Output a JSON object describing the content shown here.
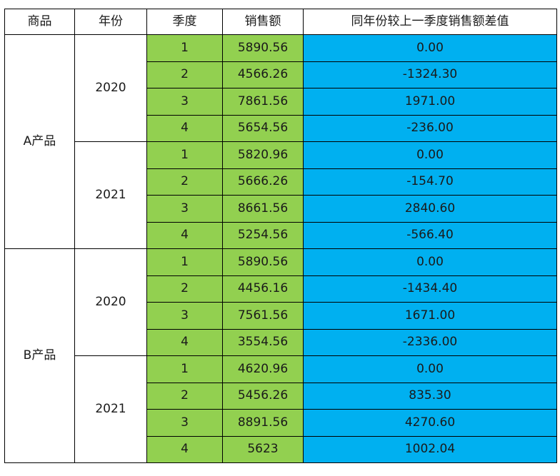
{
  "header": [
    "商品",
    "年份",
    "季度",
    "销售额",
    "同年份较上一季度销售额差值"
  ],
  "colors": {
    "quarter_bg": "#92d050",
    "sales_bg": "#92d050",
    "diff_bg": "#00b0f0",
    "border": "#000000"
  },
  "products": [
    {
      "name": "A产品",
      "years": [
        {
          "year": "2020",
          "rows": [
            {
              "quarter": "1",
              "sales": "5890.56",
              "diff": "0.00"
            },
            {
              "quarter": "2",
              "sales": "4566.26",
              "diff": "-1324.30"
            },
            {
              "quarter": "3",
              "sales": "7861.56",
              "diff": "1971.00"
            },
            {
              "quarter": "4",
              "sales": "5654.56",
              "diff": "-236.00"
            }
          ]
        },
        {
          "year": "2021",
          "rows": [
            {
              "quarter": "1",
              "sales": "5820.96",
              "diff": "0.00"
            },
            {
              "quarter": "2",
              "sales": "5666.26",
              "diff": "-154.70"
            },
            {
              "quarter": "3",
              "sales": "8661.56",
              "diff": "2840.60"
            },
            {
              "quarter": "4",
              "sales": "5254.56",
              "diff": "-566.40"
            }
          ]
        }
      ]
    },
    {
      "name": "B产品",
      "years": [
        {
          "year": "2020",
          "rows": [
            {
              "quarter": "1",
              "sales": "5890.56",
              "diff": "0.00"
            },
            {
              "quarter": "2",
              "sales": "4456.16",
              "diff": "-1434.40"
            },
            {
              "quarter": "3",
              "sales": "7561.56",
              "diff": "1671.00"
            },
            {
              "quarter": "4",
              "sales": "3554.56",
              "diff": "-2336.00"
            }
          ]
        },
        {
          "year": "2021",
          "rows": [
            {
              "quarter": "1",
              "sales": "4620.96",
              "diff": "0.00"
            },
            {
              "quarter": "2",
              "sales": "5456.26",
              "diff": "835.30"
            },
            {
              "quarter": "3",
              "sales": "8891.56",
              "diff": "4270.60"
            },
            {
              "quarter": "4",
              "sales": "5623",
              "diff": "1002.04"
            }
          ]
        }
      ]
    }
  ]
}
